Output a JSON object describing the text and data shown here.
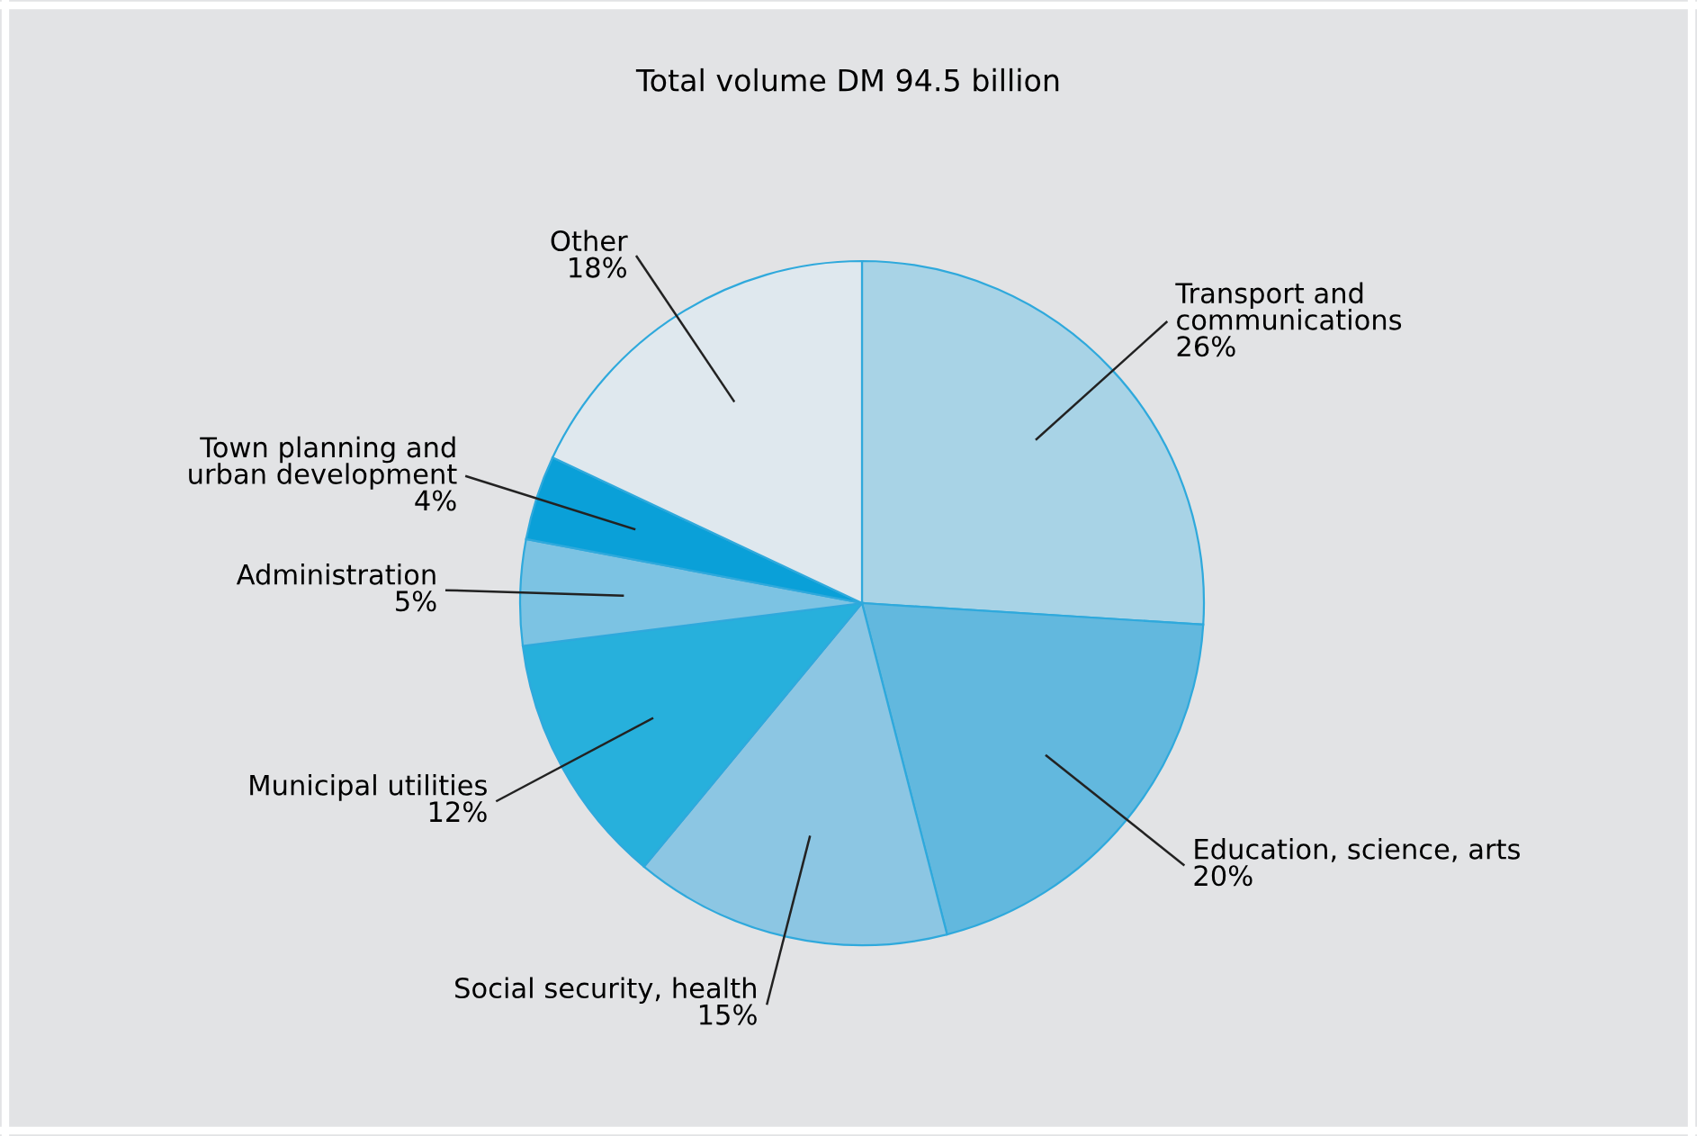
{
  "chart_data": {
    "type": "pie",
    "title": "Total volume DM 94.5 billion",
    "categories": [
      "Transport and\ncommunications",
      "Education, science, arts",
      "Social security, health",
      "Municipal utilities",
      "Administration",
      "Town planning and\nurban development",
      "Other"
    ],
    "values": [
      26,
      20,
      15,
      12,
      5,
      4,
      18
    ],
    "colors": [
      "#a8d3e6",
      "#62b8de",
      "#8cc6e3",
      "#27b0dc",
      "#7cc3e3",
      "#0aa0d8",
      "#dfe8ee"
    ],
    "value_labels": [
      "26%",
      "20%",
      "15%",
      "12%",
      "5%",
      "4%",
      "18%"
    ]
  }
}
